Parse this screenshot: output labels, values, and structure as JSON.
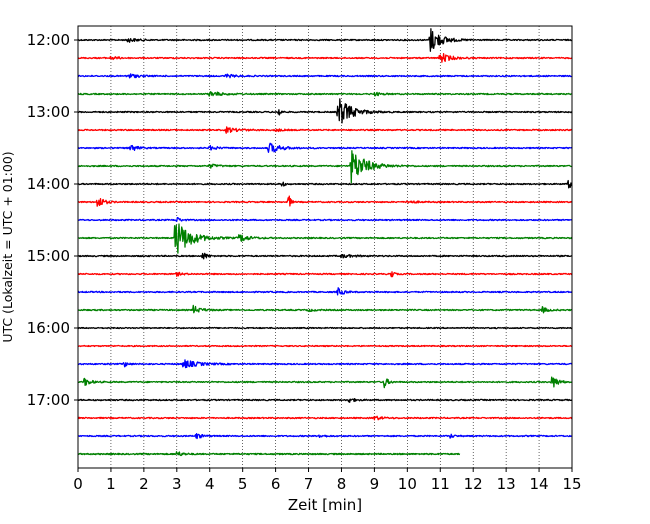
{
  "chart_data": {
    "type": "line",
    "title": "",
    "xlabel": "Zeit  [min]",
    "ylabel": "UTC (Lokalzeit = UTC + 01:00)",
    "xlim": [
      0,
      15
    ],
    "x_ticks": [
      0,
      1,
      2,
      3,
      4,
      5,
      6,
      7,
      8,
      9,
      10,
      11,
      12,
      13,
      14,
      15
    ],
    "x_tick_labels": [
      "0",
      "1",
      "2",
      "3",
      "4",
      "5",
      "6",
      "7",
      "8",
      "9",
      "10",
      "11",
      "12",
      "13",
      "14",
      "15"
    ],
    "y_tick_labels": [
      "12:00",
      "13:00",
      "14:00",
      "15:00",
      "16:00",
      "17:00"
    ],
    "y_ticks_row_index": [
      0,
      4,
      8,
      12,
      16,
      20
    ],
    "grid": "vertical dotted",
    "line_colors": [
      "#000000",
      "#ff0000",
      "#0000ff",
      "#008000"
    ],
    "rows": [
      {
        "start": "12:00",
        "color": "#000000",
        "noise": 0.45,
        "events": [
          {
            "t": 10.7,
            "amp": 9,
            "dur": 0.6
          },
          {
            "t": 1.5,
            "amp": 1.5,
            "dur": 0.5
          }
        ]
      },
      {
        "start": "12:15",
        "color": "#ff0000",
        "noise": 0.45,
        "events": [
          {
            "t": 11.0,
            "amp": 4,
            "dur": 0.5
          },
          {
            "t": 1.0,
            "amp": 1.2,
            "dur": 0.4
          }
        ]
      },
      {
        "start": "12:30",
        "color": "#0000ff",
        "noise": 0.45,
        "events": [
          {
            "t": 1.5,
            "amp": 2,
            "dur": 0.5
          },
          {
            "t": 4.5,
            "amp": 1.2,
            "dur": 0.5
          }
        ]
      },
      {
        "start": "12:45",
        "color": "#008000",
        "noise": 0.45,
        "events": [
          {
            "t": 4.0,
            "amp": 2,
            "dur": 0.6
          },
          {
            "t": 9.0,
            "amp": 1.2,
            "dur": 0.4
          }
        ]
      },
      {
        "start": "13:00",
        "color": "#000000",
        "noise": 0.45,
        "events": [
          {
            "t": 7.9,
            "amp": 11,
            "dur": 0.7
          },
          {
            "t": 6.1,
            "amp": 4,
            "dur": 0.1
          }
        ]
      },
      {
        "start": "13:15",
        "color": "#ff0000",
        "noise": 0.45,
        "events": [
          {
            "t": 4.5,
            "amp": 2,
            "dur": 0.6
          },
          {
            "t": 6.0,
            "amp": 1.2,
            "dur": 0.3
          }
        ]
      },
      {
        "start": "13:30",
        "color": "#0000ff",
        "noise": 0.45,
        "events": [
          {
            "t": 1.6,
            "amp": 3,
            "dur": 0.3
          },
          {
            "t": 5.8,
            "amp": 4,
            "dur": 0.6
          },
          {
            "t": 4.0,
            "amp": 1.5,
            "dur": 0.4
          }
        ]
      },
      {
        "start": "13:45",
        "color": "#008000",
        "noise": 0.45,
        "events": [
          {
            "t": 8.3,
            "amp": 12,
            "dur": 0.8
          },
          {
            "t": 4.0,
            "amp": 1.5,
            "dur": 0.4
          }
        ]
      },
      {
        "start": "14:00",
        "color": "#000000",
        "noise": 0.45,
        "events": [
          {
            "t": 6.2,
            "amp": 3,
            "dur": 0.1
          },
          {
            "t": 14.9,
            "amp": 3,
            "dur": 0.2
          }
        ]
      },
      {
        "start": "14:15",
        "color": "#ff0000",
        "noise": 0.45,
        "events": [
          {
            "t": 0.6,
            "amp": 5,
            "dur": 0.3
          },
          {
            "t": 6.4,
            "amp": 6,
            "dur": 0.1
          },
          {
            "t": 10.0,
            "amp": 1.2,
            "dur": 0.4
          }
        ]
      },
      {
        "start": "14:30",
        "color": "#0000ff",
        "noise": 0.45,
        "events": [
          {
            "t": 3.0,
            "amp": 2,
            "dur": 0.2
          }
        ]
      },
      {
        "start": "14:45",
        "color": "#008000",
        "noise": 0.45,
        "events": [
          {
            "t": 2.95,
            "amp": 14,
            "dur": 0.8
          },
          {
            "t": 4.9,
            "amp": 3,
            "dur": 0.5
          }
        ]
      },
      {
        "start": "15:00",
        "color": "#000000",
        "noise": 0.45,
        "events": [
          {
            "t": 3.8,
            "amp": 3,
            "dur": 0.2
          },
          {
            "t": 8.0,
            "amp": 1.2,
            "dur": 0.6
          }
        ]
      },
      {
        "start": "15:15",
        "color": "#ff0000",
        "noise": 0.45,
        "events": [
          {
            "t": 9.5,
            "amp": 6,
            "dur": 0.1
          },
          {
            "t": 3.0,
            "amp": 1.2,
            "dur": 0.3
          }
        ]
      },
      {
        "start": "15:30",
        "color": "#0000ff",
        "noise": 0.45,
        "events": [
          {
            "t": 7.9,
            "amp": 3,
            "dur": 0.3
          }
        ]
      },
      {
        "start": "15:45",
        "color": "#008000",
        "noise": 0.45,
        "events": [
          {
            "t": 3.5,
            "amp": 3,
            "dur": 0.4
          },
          {
            "t": 14.1,
            "amp": 2,
            "dur": 0.3
          },
          {
            "t": 7.0,
            "amp": 1,
            "dur": 0.3
          }
        ]
      },
      {
        "start": "16:00",
        "color": "#000000",
        "noise": 0.4,
        "events": []
      },
      {
        "start": "16:15",
        "color": "#ff0000",
        "noise": 0.4,
        "events": []
      },
      {
        "start": "16:30",
        "color": "#0000ff",
        "noise": 0.45,
        "events": [
          {
            "t": 3.2,
            "amp": 3,
            "dur": 0.8
          },
          {
            "t": 1.4,
            "amp": 2,
            "dur": 0.2
          }
        ]
      },
      {
        "start": "16:45",
        "color": "#008000",
        "noise": 0.45,
        "events": [
          {
            "t": 0.2,
            "amp": 3,
            "dur": 0.3
          },
          {
            "t": 9.3,
            "amp": 4,
            "dur": 0.2
          },
          {
            "t": 14.4,
            "amp": 5,
            "dur": 0.3
          }
        ]
      },
      {
        "start": "17:00",
        "color": "#000000",
        "noise": 0.45,
        "events": [
          {
            "t": 8.2,
            "amp": 2,
            "dur": 0.3
          }
        ]
      },
      {
        "start": "17:15",
        "color": "#ff0000",
        "noise": 0.45,
        "events": [
          {
            "t": 9.0,
            "amp": 1.5,
            "dur": 0.4
          }
        ]
      },
      {
        "start": "17:30",
        "color": "#0000ff",
        "noise": 0.45,
        "events": [
          {
            "t": 3.6,
            "amp": 2,
            "dur": 0.3
          },
          {
            "t": 7.3,
            "amp": 1.2,
            "dur": 0.3
          },
          {
            "t": 11.3,
            "amp": 1.5,
            "dur": 0.2
          }
        ]
      },
      {
        "start": "17:45",
        "color": "#008000",
        "noise": 0.45,
        "end_min": 11.6,
        "events": [
          {
            "t": 3.0,
            "amp": 2,
            "dur": 0.3
          }
        ]
      }
    ]
  }
}
